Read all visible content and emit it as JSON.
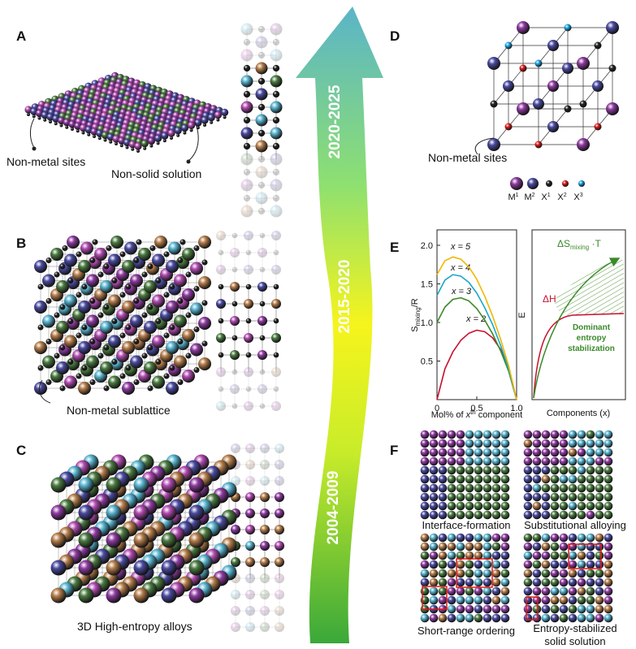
{
  "panels": {
    "A": {
      "label": "A",
      "sites": "Non-metal sites",
      "solution": "Non-solid solution"
    },
    "B": {
      "label": "B",
      "sublattice": "Non-metal sublattice"
    },
    "C": {
      "label": "C",
      "caption": "3D High-entropy alloys"
    },
    "timeline": [
      "2020-2025",
      "2015-2020",
      "2004-2009"
    ],
    "D": {
      "label": "D",
      "sites": "Non-metal sites",
      "legend": [
        {
          "base": "M",
          "sup": "1"
        },
        {
          "base": "M",
          "sup": "2"
        },
        {
          "base": "X",
          "sup": "1"
        },
        {
          "base": "X",
          "sup": "2"
        },
        {
          "base": "X",
          "sup": "3"
        }
      ]
    },
    "E": {
      "label": "E",
      "ylabel": "E",
      "xlabel": "Components (x)",
      "entropy": {
        "text": "ΔS",
        "sub": "mixing",
        "tail": " ·T"
      },
      "enthalpy": "ΔH",
      "note": [
        "Dominant",
        "entropy",
        "stabilization"
      ]
    },
    "F": {
      "label": "F",
      "captions": [
        "Interface-formation",
        "Substitutional alloying",
        "Short-range ordering",
        "Entropy-stabilized"
      ],
      "caption_extra": "solid solution"
    }
  },
  "chart_data": {
    "type": "line",
    "ylabel": {
      "text": "S",
      "sub": "mixing",
      "tail": "/R"
    },
    "xlabel": {
      "pre": "Mol% of ",
      "var": "x",
      "sup": "th",
      "post": " component"
    },
    "x": [
      0,
      0.1,
      0.2,
      0.3,
      0.4,
      0.5,
      0.6,
      0.7,
      0.8,
      0.9,
      1.0
    ],
    "xlim": [
      0,
      1.0
    ],
    "ylim": [
      0,
      2.2
    ],
    "xticks": [
      0,
      0.5,
      {
        "value": 1.0,
        "label": "1.0"
      }
    ],
    "yticks": [
      0.5,
      {
        "value": 1.0,
        "label": "1.0"
      },
      1.5,
      {
        "value": 2.0,
        "label": "2.0"
      }
    ],
    "series": [
      {
        "name": "x = 2",
        "color": "#c8102e",
        "values": [
          0,
          0.4,
          0.62,
          0.77,
          0.86,
          0.9,
          0.88,
          0.8,
          0.65,
          0.42,
          0
        ]
      },
      {
        "name": "x = 3",
        "color": "#3a8a2a",
        "values": [
          1.0,
          1.2,
          1.3,
          1.32,
          1.28,
          1.18,
          1.03,
          0.85,
          0.63,
          0.37,
          0
        ]
      },
      {
        "name": "x = 4",
        "color": "#1aa6c8",
        "values": [
          1.35,
          1.55,
          1.62,
          1.6,
          1.52,
          1.38,
          1.19,
          0.97,
          0.7,
          0.4,
          0
        ]
      },
      {
        "name": "x = 5",
        "color": "#f2b600",
        "values": [
          1.62,
          1.8,
          1.85,
          1.82,
          1.72,
          1.56,
          1.34,
          1.08,
          0.78,
          0.44,
          0
        ]
      }
    ]
  }
}
